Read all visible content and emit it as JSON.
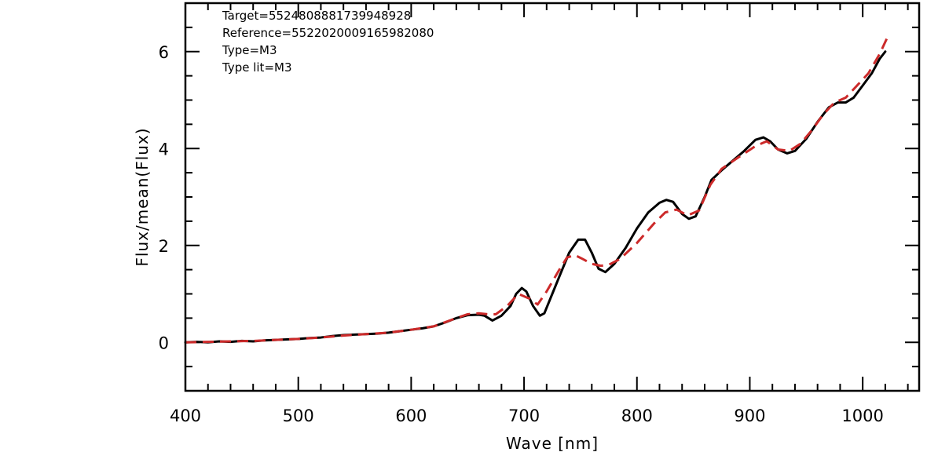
{
  "chart_data": {
    "type": "line",
    "xlabel": "Wave [nm]",
    "ylabel": "Flux/mean(Flux)",
    "xlim": [
      400,
      1050
    ],
    "ylim": [
      -1,
      7
    ],
    "x_ticks": [
      400,
      500,
      600,
      700,
      800,
      900,
      1000
    ],
    "y_ticks": [
      0,
      2,
      4,
      6
    ],
    "x_tick_labels": [
      "400",
      "500",
      "600",
      "700",
      "800",
      "900",
      "1000"
    ],
    "y_tick_labels": [
      "0",
      "2",
      "4",
      "6"
    ],
    "grid": false,
    "annotations": [
      "Target=5524808881739948928",
      "Reference=5522020009165982080",
      "Type=M3",
      "Type lit=M3"
    ],
    "series": [
      {
        "color": "#000000",
        "style": "solid",
        "points": [
          [
            400,
            0.0
          ],
          [
            410,
            0.01
          ],
          [
            420,
            0.0
          ],
          [
            430,
            0.02
          ],
          [
            440,
            0.01
          ],
          [
            450,
            0.03
          ],
          [
            460,
            0.02
          ],
          [
            470,
            0.04
          ],
          [
            480,
            0.05
          ],
          [
            490,
            0.06
          ],
          [
            500,
            0.07
          ],
          [
            510,
            0.09
          ],
          [
            520,
            0.1
          ],
          [
            530,
            0.13
          ],
          [
            540,
            0.15
          ],
          [
            550,
            0.16
          ],
          [
            560,
            0.17
          ],
          [
            570,
            0.18
          ],
          [
            580,
            0.2
          ],
          [
            590,
            0.23
          ],
          [
            600,
            0.26
          ],
          [
            610,
            0.29
          ],
          [
            620,
            0.33
          ],
          [
            630,
            0.41
          ],
          [
            640,
            0.5
          ],
          [
            650,
            0.56
          ],
          [
            660,
            0.57
          ],
          [
            665,
            0.55
          ],
          [
            672,
            0.45
          ],
          [
            680,
            0.55
          ],
          [
            688,
            0.75
          ],
          [
            693,
            1.0
          ],
          [
            698,
            1.12
          ],
          [
            702,
            1.05
          ],
          [
            708,
            0.75
          ],
          [
            714,
            0.55
          ],
          [
            718,
            0.6
          ],
          [
            725,
            1.0
          ],
          [
            732,
            1.4
          ],
          [
            740,
            1.85
          ],
          [
            748,
            2.12
          ],
          [
            754,
            2.12
          ],
          [
            760,
            1.85
          ],
          [
            766,
            1.52
          ],
          [
            772,
            1.45
          ],
          [
            780,
            1.62
          ],
          [
            790,
            1.95
          ],
          [
            800,
            2.35
          ],
          [
            810,
            2.68
          ],
          [
            820,
            2.88
          ],
          [
            826,
            2.94
          ],
          [
            832,
            2.9
          ],
          [
            840,
            2.65
          ],
          [
            846,
            2.55
          ],
          [
            852,
            2.6
          ],
          [
            860,
            3.0
          ],
          [
            866,
            3.35
          ],
          [
            875,
            3.55
          ],
          [
            885,
            3.75
          ],
          [
            895,
            3.95
          ],
          [
            905,
            4.18
          ],
          [
            912,
            4.23
          ],
          [
            918,
            4.15
          ],
          [
            925,
            3.98
          ],
          [
            933,
            3.9
          ],
          [
            940,
            3.95
          ],
          [
            950,
            4.2
          ],
          [
            960,
            4.55
          ],
          [
            970,
            4.85
          ],
          [
            978,
            4.95
          ],
          [
            985,
            4.95
          ],
          [
            992,
            5.05
          ],
          [
            1000,
            5.3
          ],
          [
            1008,
            5.55
          ],
          [
            1015,
            5.85
          ],
          [
            1020,
            6.0
          ]
        ]
      },
      {
        "color": "#cc2a2a",
        "style": "dashed",
        "points": [
          [
            400,
            0.0
          ],
          [
            420,
            0.01
          ],
          [
            440,
            0.02
          ],
          [
            460,
            0.03
          ],
          [
            480,
            0.05
          ],
          [
            500,
            0.07
          ],
          [
            520,
            0.1
          ],
          [
            540,
            0.14
          ],
          [
            560,
            0.17
          ],
          [
            580,
            0.2
          ],
          [
            600,
            0.26
          ],
          [
            620,
            0.33
          ],
          [
            640,
            0.5
          ],
          [
            650,
            0.58
          ],
          [
            660,
            0.6
          ],
          [
            668,
            0.58
          ],
          [
            675,
            0.58
          ],
          [
            685,
            0.75
          ],
          [
            695,
            1.0
          ],
          [
            705,
            0.9
          ],
          [
            712,
            0.78
          ],
          [
            720,
            1.05
          ],
          [
            730,
            1.45
          ],
          [
            738,
            1.75
          ],
          [
            745,
            1.8
          ],
          [
            752,
            1.72
          ],
          [
            760,
            1.62
          ],
          [
            768,
            1.58
          ],
          [
            775,
            1.6
          ],
          [
            785,
            1.72
          ],
          [
            800,
            2.05
          ],
          [
            815,
            2.45
          ],
          [
            825,
            2.68
          ],
          [
            835,
            2.74
          ],
          [
            845,
            2.62
          ],
          [
            855,
            2.72
          ],
          [
            865,
            3.25
          ],
          [
            875,
            3.58
          ],
          [
            890,
            3.82
          ],
          [
            905,
            4.05
          ],
          [
            915,
            4.15
          ],
          [
            925,
            3.98
          ],
          [
            935,
            3.95
          ],
          [
            945,
            4.1
          ],
          [
            955,
            4.38
          ],
          [
            965,
            4.7
          ],
          [
            975,
            4.95
          ],
          [
            985,
            5.05
          ],
          [
            995,
            5.3
          ],
          [
            1005,
            5.55
          ],
          [
            1015,
            5.95
          ],
          [
            1022,
            6.3
          ]
        ]
      }
    ]
  }
}
